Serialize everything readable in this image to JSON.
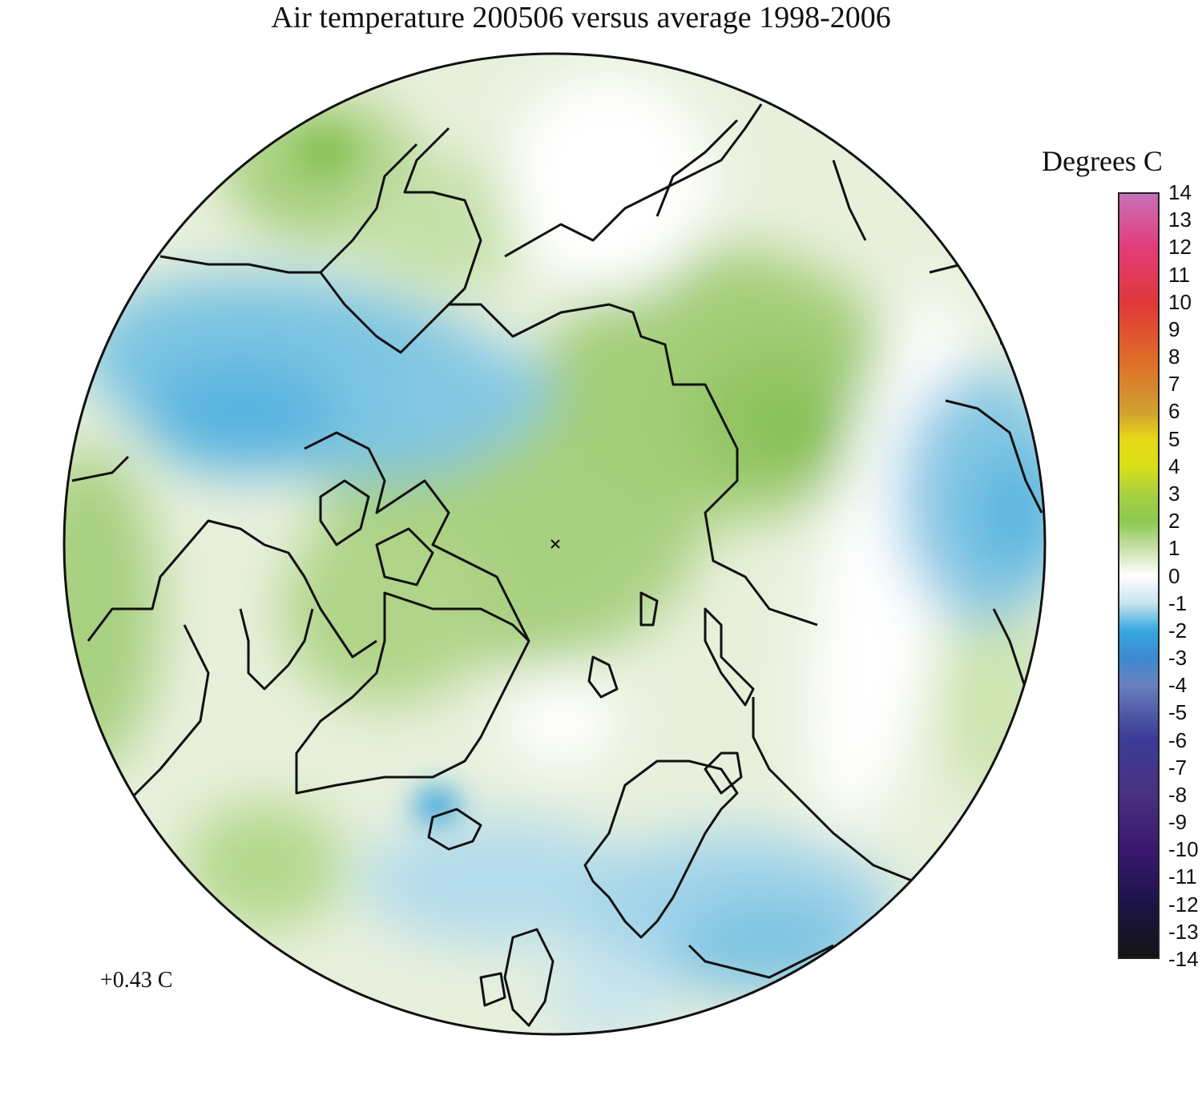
{
  "title": "Air temperature 200506 versus average 1998-2006",
  "legend": {
    "title": "Degrees C",
    "ticks": [
      "14",
      "13",
      "12",
      "11",
      "10",
      "9",
      "8",
      "7",
      "6",
      "5",
      "4",
      "3",
      "2",
      "1",
      "0",
      "-1",
      "-2",
      "-3",
      "-4",
      "-5",
      "-6",
      "-7",
      "-8",
      "-9",
      "-10",
      "-11",
      "-12",
      "-13",
      "-14"
    ],
    "colors": {
      "14": "#c870b8",
      "12": "#e23c78",
      "10": "#e03838",
      "8": "#e06a2a",
      "6": "#d0a030",
      "5": "#e8d818",
      "4": "#d8e018",
      "3": "#a8d040",
      "2": "#8cc850",
      "1": "#c8e0a8",
      "0": "#ffffff",
      "-1": "#c8e4ee",
      "-2": "#38a8e0",
      "-3": "#3c8ad0",
      "-4": "#6a80c0",
      "-5": "#505ca8",
      "-6": "#3c3c98",
      "-8": "#4a3080",
      "-10": "#3a1870",
      "-12": "#1c1448",
      "-14": "#141414"
    }
  },
  "map": {
    "projection": "north polar stereographic",
    "center_marker": "x",
    "region_anomalies_c": {
      "arctic_ocean_north_america_side": 1.8,
      "siberia": 2,
      "alaska_chukotka": -2.5,
      "east_asia": -2,
      "scandinavia_europe": -1.5,
      "iceland": -3,
      "greenland": 1,
      "canada": 0.5
    }
  },
  "mean_anomaly": "+0.43 C"
}
